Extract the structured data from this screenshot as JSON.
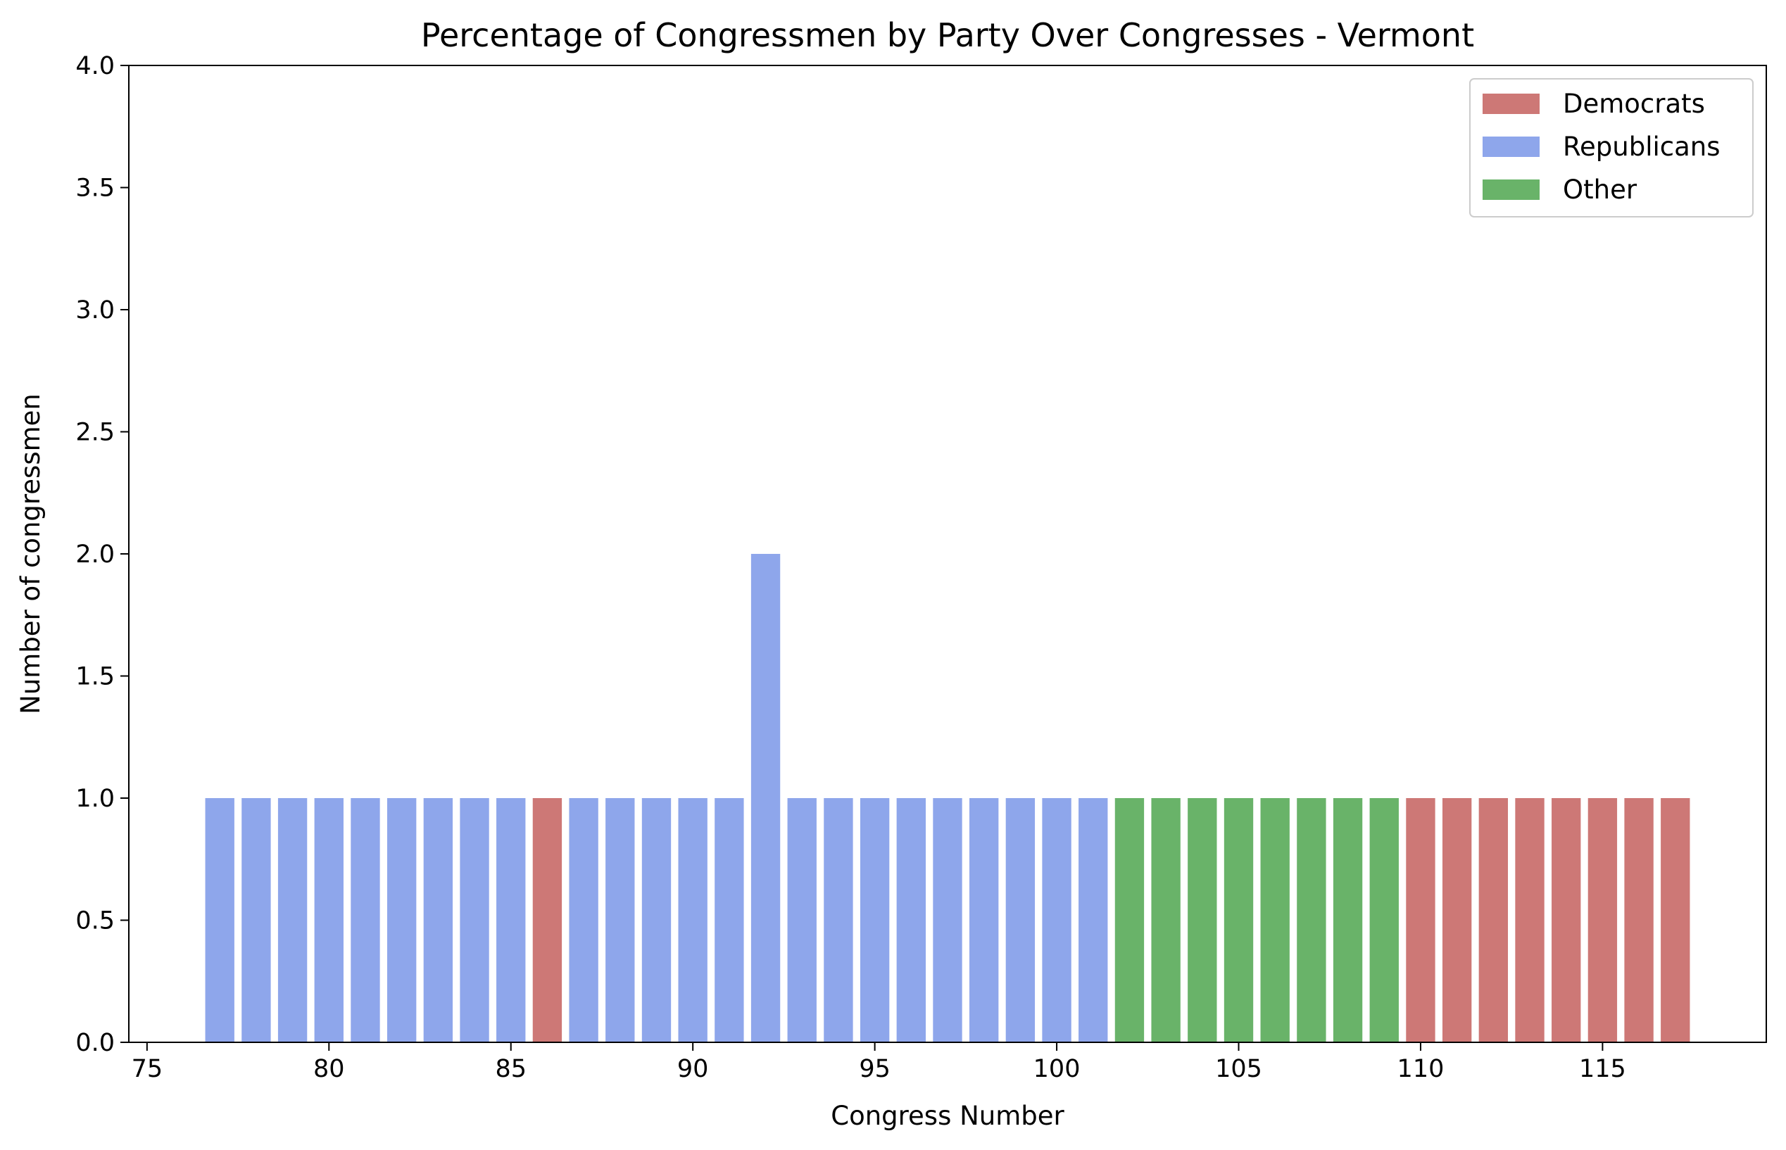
{
  "chart_data": {
    "type": "bar",
    "title": "Percentage of Congressmen by Party Over Congresses - Vermont",
    "xlabel": "Congress Number",
    "ylabel": "Number of congressmen",
    "xlim": [
      74.5,
      119.5
    ],
    "ylim": [
      0,
      4.0
    ],
    "xticks": [
      75,
      80,
      85,
      90,
      95,
      100,
      105,
      110,
      115
    ],
    "xtick_labels": [
      "75",
      "80",
      "85",
      "90",
      "95",
      "100",
      "105",
      "110",
      "115"
    ],
    "yticks": [
      0,
      0.5,
      1.0,
      1.5,
      2.0,
      2.5,
      3.0,
      3.5,
      4.0
    ],
    "ytick_labels": [
      "0.0",
      "0.5",
      "1.0",
      "1.5",
      "2.0",
      "2.5",
      "3.0",
      "3.5",
      "4.0"
    ],
    "grid": false,
    "legend_position": "top-right",
    "series": [
      {
        "name": "Democrats",
        "color": "#cd7876",
        "x": [
          86,
          110,
          111,
          112,
          113,
          114,
          115,
          116,
          117
        ],
        "values": [
          1,
          1,
          1,
          1,
          1,
          1,
          1,
          1,
          1
        ]
      },
      {
        "name": "Republicans",
        "color": "#8ea6eb",
        "x": [
          77,
          78,
          79,
          80,
          81,
          82,
          83,
          84,
          85,
          87,
          88,
          89,
          90,
          91,
          92,
          93,
          94,
          95,
          96,
          97,
          98,
          99,
          100,
          101
        ],
        "values": [
          1,
          1,
          1,
          1,
          1,
          1,
          1,
          1,
          1,
          1,
          1,
          1,
          1,
          1,
          2,
          1,
          1,
          1,
          1,
          1,
          1,
          1,
          1,
          1
        ]
      },
      {
        "name": "Other",
        "color": "#69b369",
        "x": [
          102,
          103,
          104,
          105,
          106,
          107,
          108,
          109
        ],
        "values": [
          1,
          1,
          1,
          1,
          1,
          1,
          1,
          1
        ]
      }
    ]
  }
}
